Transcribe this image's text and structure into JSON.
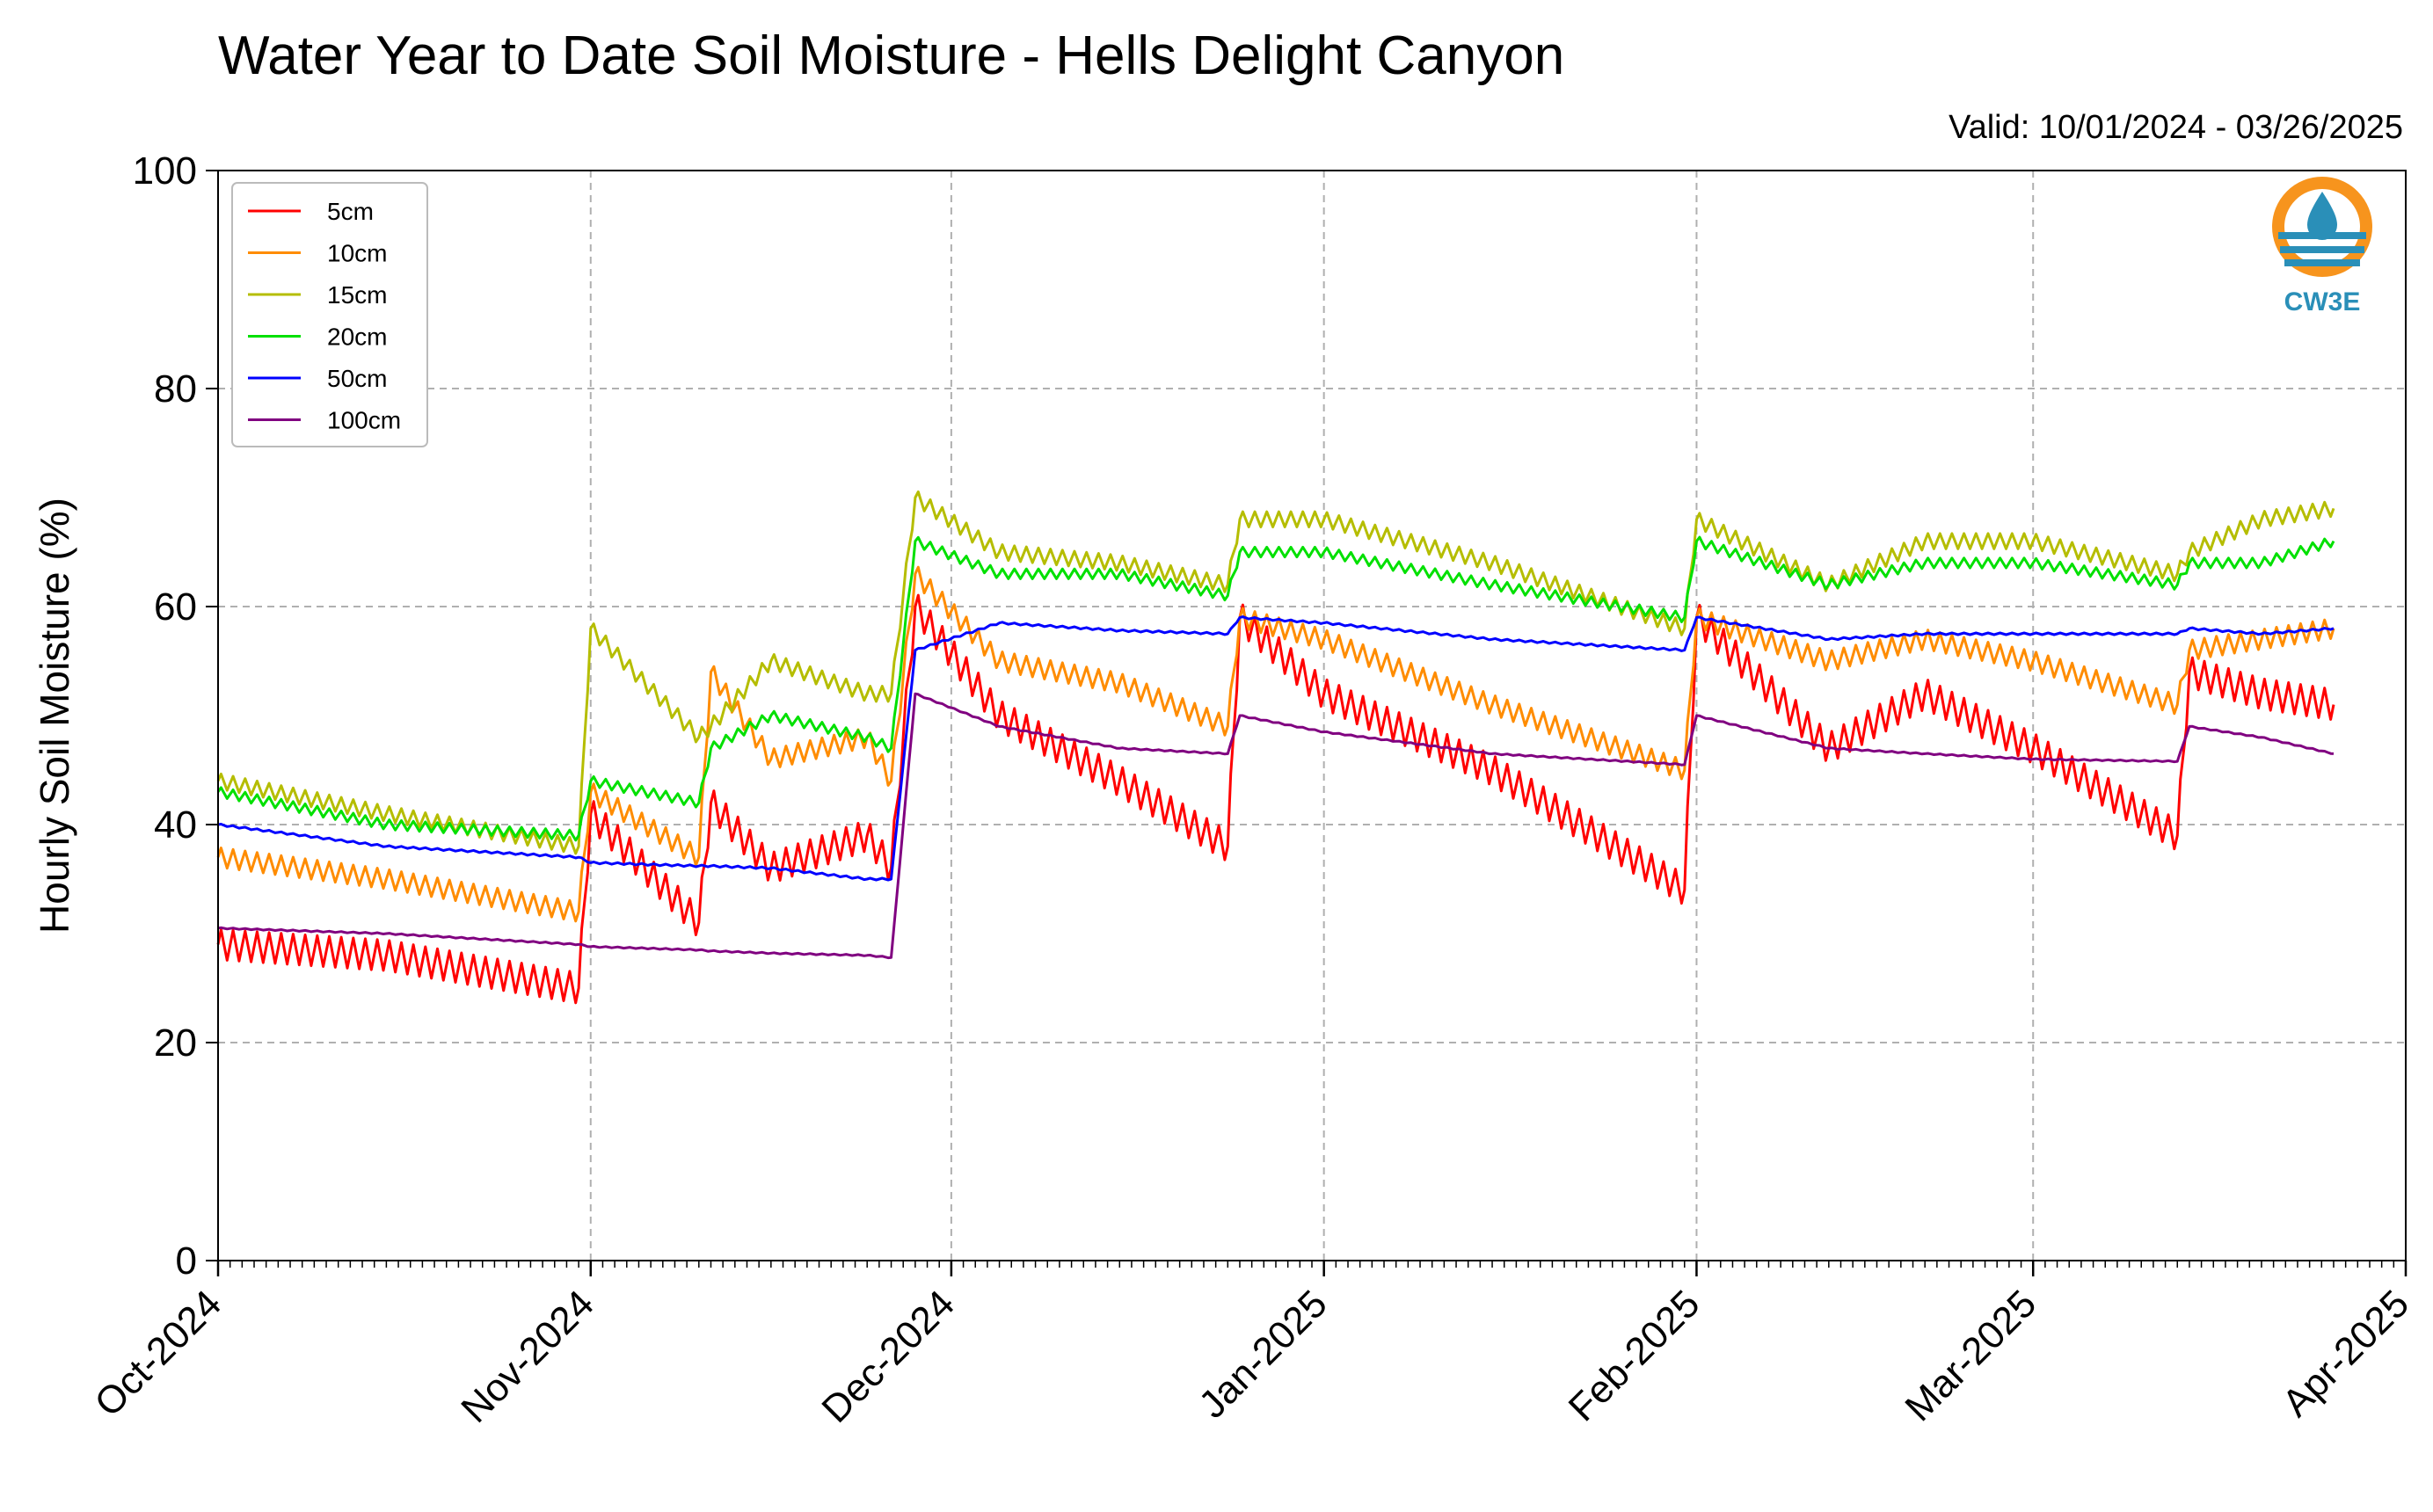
{
  "chart_data": {
    "type": "line",
    "title": "Water Year to Date Soil Moisture - Hells Delight Canyon",
    "subtitle": "Valid: 10/01/2024 - 03/26/2025",
    "xlabel": "",
    "ylabel": "Hourly Soil Moisture (%)",
    "xlim": [
      "2024-10-01",
      "2025-04-01"
    ],
    "ylim": [
      0,
      100
    ],
    "yticks": [
      0,
      20,
      40,
      60,
      80,
      100
    ],
    "xticks": [
      "Oct-2024",
      "Nov-2024",
      "Dec-2024",
      "Jan-2025",
      "Feb-2025",
      "Mar-2025",
      "Apr-2025"
    ],
    "xtick_dates": [
      "2024-10-01",
      "2024-11-01",
      "2024-12-01",
      "2025-01-01",
      "2025-02-01",
      "2025-03-01",
      "2025-04-01"
    ],
    "grid": true,
    "legend_position": "top-left",
    "series": [
      {
        "name": "5cm",
        "color": "#ff0000",
        "x": [
          "2024-10-01",
          "2024-10-15",
          "2024-10-31",
          "2024-11-01",
          "2024-11-10",
          "2024-11-11",
          "2024-11-16",
          "2024-11-24",
          "2024-11-26",
          "2024-11-28",
          "2024-12-05",
          "2024-12-15",
          "2024-12-24",
          "2024-12-25",
          "2025-01-01",
          "2025-01-15",
          "2025-01-31",
          "2025-02-01",
          "2025-02-12",
          "2025-02-20",
          "2025-03-01",
          "2025-03-13",
          "2025-03-14",
          "2025-03-20",
          "2025-03-26"
        ],
        "y": [
          29,
          28,
          25,
          41,
          31,
          42,
          36,
          39,
          36,
          60,
          50,
          44,
          38,
          59,
          52,
          45,
          34,
          59,
          47,
          52,
          47,
          39,
          54,
          52,
          51
        ]
      },
      {
        "name": "10cm",
        "color": "#ff8c00",
        "x": [
          "2024-10-01",
          "2024-10-15",
          "2024-10-31",
          "2024-11-01",
          "2024-11-10",
          "2024-11-11",
          "2024-11-16",
          "2024-11-24",
          "2024-11-26",
          "2024-11-28",
          "2024-12-05",
          "2024-12-15",
          "2024-12-24",
          "2024-12-25",
          "2025-01-01",
          "2025-01-15",
          "2025-01-31",
          "2025-02-01",
          "2025-02-12",
          "2025-02-20",
          "2025-03-01",
          "2025-03-13",
          "2025-03-14",
          "2025-03-20",
          "2025-03-26"
        ],
        "y": [
          37,
          35,
          32,
          43,
          37,
          54,
          46,
          48,
          44,
          63,
          55,
          53,
          49,
          59,
          57,
          51,
          45,
          59,
          55,
          57,
          55,
          51,
          56,
          57,
          58
        ]
      },
      {
        "name": "15cm",
        "color": "#b5bd00",
        "x": [
          "2024-10-01",
          "2024-10-15",
          "2024-10-31",
          "2024-11-01",
          "2024-11-10",
          "2024-11-11",
          "2024-11-16",
          "2024-11-24",
          "2024-11-26",
          "2024-11-28",
          "2024-12-05",
          "2024-12-15",
          "2024-12-24",
          "2024-12-25",
          "2025-01-01",
          "2025-01-15",
          "2025-01-31",
          "2025-02-01",
          "2025-02-12",
          "2025-02-20",
          "2025-03-01",
          "2025-03-13",
          "2025-03-14",
          "2025-03-20",
          "2025-03-26"
        ],
        "y": [
          44,
          41,
          38,
          58,
          48,
          49,
          55,
          52,
          52,
          70,
          65,
          64,
          62,
          68,
          68,
          64,
          58,
          68,
          62,
          66,
          66,
          63,
          65,
          68,
          69
        ]
      },
      {
        "name": "20cm",
        "color": "#00e000",
        "x": [
          "2024-10-01",
          "2024-10-15",
          "2024-10-31",
          "2024-11-01",
          "2024-11-10",
          "2024-11-11",
          "2024-11-16",
          "2024-11-24",
          "2024-11-26",
          "2024-11-28",
          "2024-12-05",
          "2024-12-15",
          "2024-12-24",
          "2024-12-25",
          "2025-01-01",
          "2025-01-15",
          "2025-01-31",
          "2025-02-01",
          "2025-02-12",
          "2025-02-20",
          "2025-03-01",
          "2025-03-13",
          "2025-03-14",
          "2025-03-20",
          "2025-03-26"
        ],
        "y": [
          43,
          40,
          39,
          44,
          42,
          47,
          50,
          48,
          47,
          66,
          63,
          63,
          61,
          65,
          65,
          62,
          59,
          66,
          62,
          64,
          64,
          62,
          64,
          64,
          66
        ]
      },
      {
        "name": "50cm",
        "color": "#0000ff",
        "x": [
          "2024-10-01",
          "2024-10-15",
          "2024-10-31",
          "2024-11-01",
          "2024-11-10",
          "2024-11-11",
          "2024-11-16",
          "2024-11-24",
          "2024-11-26",
          "2024-11-28",
          "2024-12-05",
          "2024-12-15",
          "2024-12-24",
          "2024-12-25",
          "2025-01-01",
          "2025-01-15",
          "2025-01-31",
          "2025-02-01",
          "2025-02-12",
          "2025-02-20",
          "2025-03-01",
          "2025-03-13",
          "2025-03-14",
          "2025-03-20",
          "2025-03-26"
        ],
        "y": [
          40,
          38,
          37,
          36.5,
          36.2,
          36.2,
          36,
          35,
          35,
          56,
          58.5,
          57.8,
          57.5,
          59,
          58.5,
          57,
          56,
          59,
          57,
          57.5,
          57.5,
          57.5,
          58,
          57.5,
          58
        ]
      },
      {
        "name": "100cm",
        "color": "#800080",
        "x": [
          "2024-10-01",
          "2024-10-15",
          "2024-10-31",
          "2024-11-01",
          "2024-11-10",
          "2024-11-11",
          "2024-11-16",
          "2024-11-24",
          "2024-11-26",
          "2024-11-28",
          "2024-12-05",
          "2024-12-15",
          "2024-12-24",
          "2024-12-25",
          "2025-01-01",
          "2025-01-15",
          "2025-01-31",
          "2025-02-01",
          "2025-02-12",
          "2025-02-20",
          "2025-03-01",
          "2025-03-13",
          "2025-03-14",
          "2025-03-20",
          "2025-03-26"
        ],
        "y": [
          30.5,
          30,
          29,
          28.8,
          28.5,
          28.4,
          28.2,
          28,
          27.8,
          52,
          49,
          47,
          46.5,
          50,
          48.5,
          46.5,
          45.5,
          50,
          47,
          46.5,
          46,
          45.8,
          49,
          48,
          46.5
        ]
      }
    ]
  },
  "logo": {
    "text": "CW3E",
    "ring_color": "#f7941d",
    "wave_color": "#2a8fb8"
  }
}
